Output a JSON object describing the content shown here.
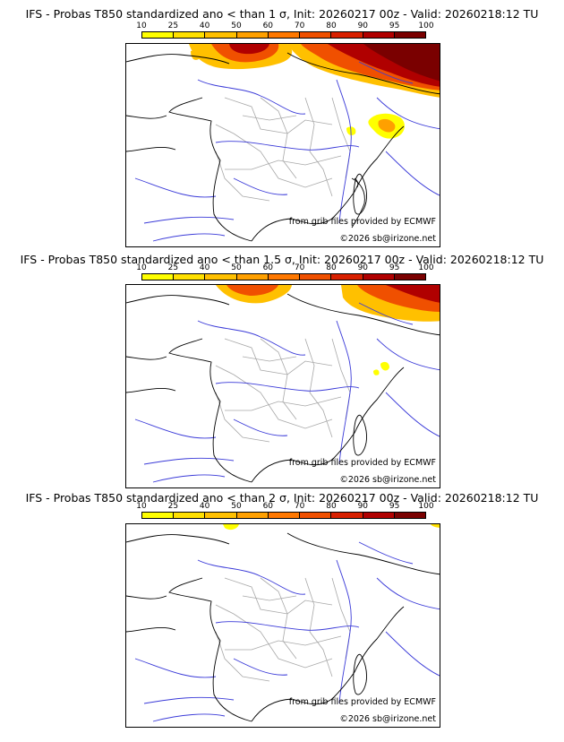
{
  "panels": [
    {
      "title": "IFS - Probas T850  standardized ano < than 1 σ, Init: 20260217 00z - Valid: 20260218:12 TU",
      "source_note": "from grib files provided by ECMWF",
      "copyright": "©2026 sb@irizone.net"
    },
    {
      "title": "IFS - Probas T850  standardized ano < than 1.5 σ, Init: 20260217 00z - Valid: 20260218:12 TU",
      "source_note": "from grib files provided by ECMWF",
      "copyright": "©2026 sb@irizone.net"
    },
    {
      "title": "IFS - Probas T850  standardized ano < than 2 σ, Init: 20260217 00z - Valid: 20260218:12 TU",
      "source_note": "from grib files provided by ECMWF",
      "copyright": "©2026 sb@irizone.net"
    }
  ],
  "legend": {
    "ticks": [
      "10",
      "25",
      "40",
      "50",
      "60",
      "70",
      "80",
      "90",
      "95",
      "100"
    ],
    "colors": [
      "#ffff00",
      "#ffe000",
      "#ffc000",
      "#ffa000",
      "#ff7800",
      "#f05000",
      "#d82000",
      "#b00000",
      "#7a0000"
    ]
  }
}
